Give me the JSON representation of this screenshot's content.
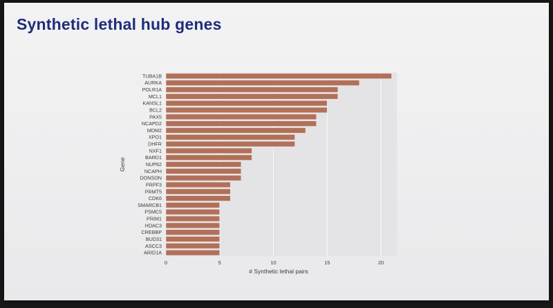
{
  "slide": {
    "title": "Synthetic lethal hub genes"
  },
  "chart_data": {
    "type": "bar",
    "orientation": "horizontal",
    "title": "",
    "xlabel": "# Synthetic lethal pairs",
    "ylabel": "Gene",
    "xlim": [
      0,
      21.5
    ],
    "xticks": [
      0,
      5,
      10,
      15,
      20
    ],
    "grid": true,
    "bar_color": "#b0705a",
    "categories": [
      "TUBA1B",
      "AURKA",
      "POLR1A",
      "MCL1",
      "KANSL1",
      "BCL2",
      "PAX5",
      "NCAPD2",
      "MDM2",
      "XPO1",
      "DHFR",
      "NXF1",
      "BARD1",
      "NUP62",
      "NCAPH",
      "DONSON",
      "PRPF3",
      "PRMT5",
      "CDK6",
      "SMARCB1",
      "PSMC5",
      "PRIM1",
      "HDAC3",
      "CREBBP",
      "BUD31",
      "ASCC3",
      "ARID1A"
    ],
    "values": [
      21,
      18,
      16,
      16,
      15,
      15,
      14,
      14,
      13,
      12,
      12,
      8,
      8,
      7,
      7,
      7,
      6,
      6,
      6,
      5,
      5,
      5,
      5,
      5,
      5,
      5,
      5
    ]
  }
}
